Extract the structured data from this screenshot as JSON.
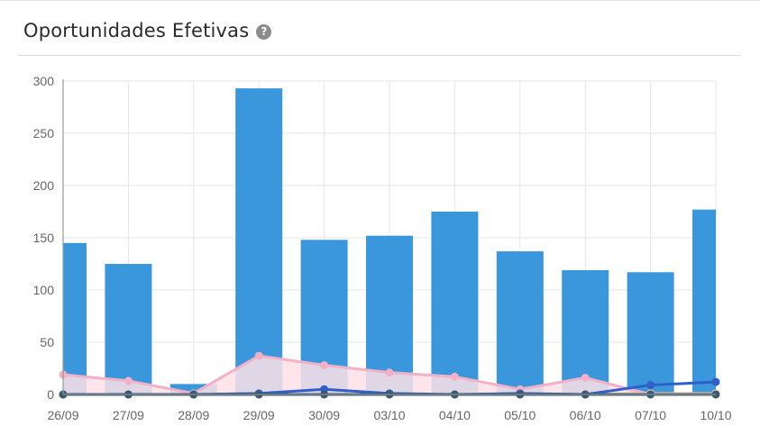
{
  "widget": {
    "title": "Oportunidades Efetivas",
    "help_icon": "question-circle-icon"
  },
  "chart_data": {
    "type": "bar",
    "categories": [
      "26/09",
      "27/09",
      "28/09",
      "29/09",
      "30/09",
      "03/10",
      "04/10",
      "05/10",
      "06/10",
      "07/10",
      "10/10"
    ],
    "ylim": [
      0,
      300
    ],
    "yticks": [
      0,
      50,
      100,
      150,
      200,
      250,
      300
    ],
    "grid": true,
    "legend": "none",
    "bars": {
      "color": "#3a97dc",
      "values": [
        145,
        125,
        10,
        293,
        148,
        152,
        175,
        137,
        119,
        117,
        177
      ]
    },
    "lines": [
      {
        "type": "area",
        "color": "#f3b1c8",
        "fill": "#fde1e8",
        "values": [
          19,
          13,
          1,
          37,
          28,
          21,
          17,
          5,
          16,
          0,
          0
        ]
      },
      {
        "type": "line",
        "color": "#f5e663",
        "values": [
          0,
          0,
          0,
          0,
          0,
          0,
          0,
          0,
          0,
          0,
          0
        ]
      },
      {
        "type": "line",
        "color": "#f7c3a0",
        "values": [
          0,
          0,
          0,
          0,
          0,
          0,
          0,
          0,
          0,
          1,
          1
        ]
      },
      {
        "type": "line",
        "color": "#2f5fc7",
        "values": [
          0,
          0,
          0,
          1,
          5,
          1,
          0,
          1,
          0,
          9,
          12
        ]
      },
      {
        "type": "line",
        "color": "#3c5a6e",
        "values": [
          0,
          0,
          0,
          0,
          0,
          0,
          0,
          0,
          0,
          0,
          0
        ]
      }
    ]
  }
}
